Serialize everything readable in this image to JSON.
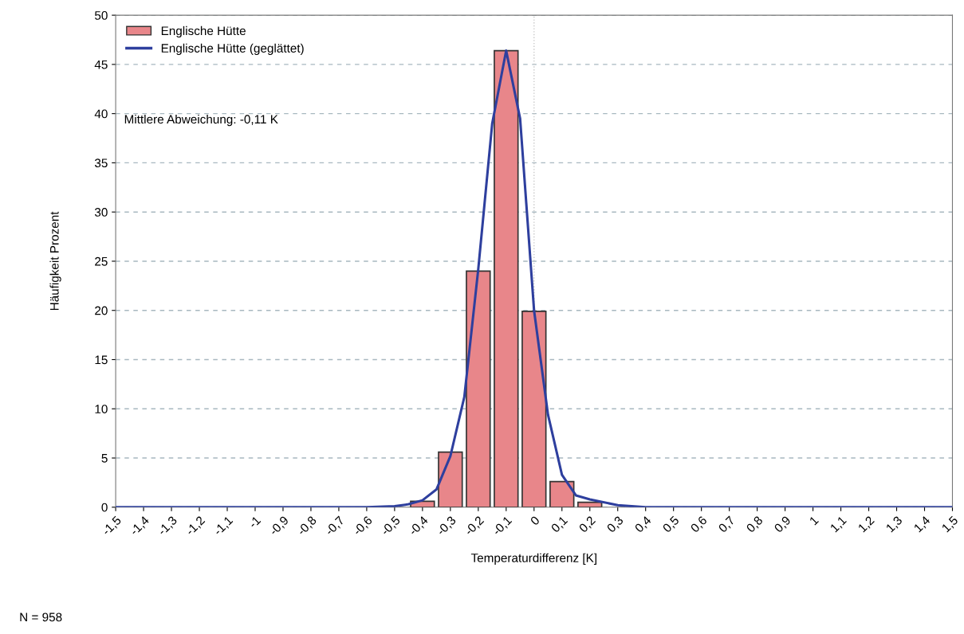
{
  "chart_data": {
    "type": "bar",
    "xlabel": "Temperaturdifferenz [K]",
    "ylabel": "Häufigkeit Prozent",
    "series": [
      {
        "name": "Englische Hütte",
        "color": "#e8868a",
        "x": [
          -0.4,
          -0.3,
          -0.2,
          -0.1,
          0,
          0.1,
          0.2
        ],
        "values": [
          0.6,
          5.6,
          24.0,
          46.4,
          19.9,
          2.6,
          0.5
        ]
      },
      {
        "name": "Englische Hütte (geglättet)",
        "type": "line",
        "color": "#2e3f9e",
        "x": [
          -1.5,
          -0.6,
          -0.5,
          -0.45,
          -0.4,
          -0.35,
          -0.3,
          -0.25,
          -0.2,
          -0.15,
          -0.1,
          -0.05,
          0,
          0.05,
          0.1,
          0.15,
          0.2,
          0.3,
          0.4,
          0.5,
          1.5
        ],
        "values": [
          0,
          0,
          0.1,
          0.3,
          0.7,
          1.8,
          5.2,
          11.2,
          24.2,
          39,
          46.4,
          39.5,
          20,
          9.4,
          3.3,
          1.2,
          0.8,
          0.2,
          0,
          0,
          0
        ]
      }
    ],
    "xlim": [
      -1.5,
      1.5
    ],
    "xticks": [
      {
        "value": -1.5,
        "label": "-1,5"
      },
      {
        "value": -1.4,
        "label": "-1,4"
      },
      {
        "value": -1.3,
        "label": "-1,3"
      },
      {
        "value": -1.2,
        "label": "-1,2"
      },
      {
        "value": -1.1,
        "label": "-1,1"
      },
      -1,
      {
        "value": -0.9,
        "label": "-0,9"
      },
      {
        "value": -0.8,
        "label": "-0,8"
      },
      {
        "value": -0.7,
        "label": "-0,7"
      },
      {
        "value": -0.6,
        "label": "-0,6"
      },
      {
        "value": -0.5,
        "label": "-0,5"
      },
      {
        "value": -0.4,
        "label": "-0,4"
      },
      {
        "value": -0.3,
        "label": "-0,3"
      },
      {
        "value": -0.2,
        "label": "-0,2"
      },
      {
        "value": -0.1,
        "label": "-0,1"
      },
      0,
      {
        "value": 0.1,
        "label": "0,1"
      },
      {
        "value": 0.2,
        "label": "0,2"
      },
      {
        "value": 0.3,
        "label": "0,3"
      },
      {
        "value": 0.4,
        "label": "0,4"
      },
      {
        "value": 0.5,
        "label": "0,5"
      },
      {
        "value": 0.6,
        "label": "0,6"
      },
      {
        "value": 0.7,
        "label": "0,7"
      },
      {
        "value": 0.8,
        "label": "0,8"
      },
      {
        "value": 0.9,
        "label": "0,9"
      },
      1,
      {
        "value": 1.1,
        "label": "1,1"
      },
      {
        "value": 1.2,
        "label": "1,2"
      },
      {
        "value": 1.3,
        "label": "1,3"
      },
      {
        "value": 1.4,
        "label": "1,4"
      },
      {
        "value": 1.5,
        "label": "1,5"
      }
    ],
    "ylim": [
      0,
      50
    ],
    "yticks": [
      0,
      5,
      10,
      15,
      20,
      25,
      30,
      35,
      40,
      45,
      50
    ],
    "grid": "y",
    "legend": "top left",
    "ref_lines": [
      {
        "axis": "x",
        "value": 0,
        "color": "#c8c8c8",
        "line_style": "dotted"
      }
    ],
    "annotations": [
      {
        "text": "Mittlere Abweichung: -0,11 K"
      },
      {
        "text": "N = 958"
      }
    ]
  }
}
